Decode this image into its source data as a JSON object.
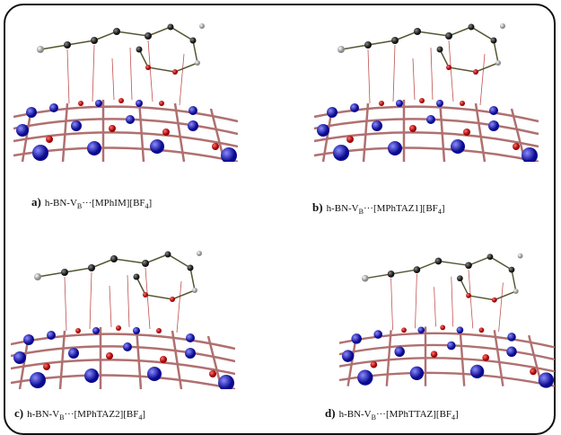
{
  "panels": [
    {
      "label": "a)",
      "caption": [
        {
          "text": "h-BN-V"
        },
        {
          "text": "B",
          "sub": true
        },
        {
          "text": "···[MPhIM][BF"
        },
        {
          "text": "4",
          "sub": true
        },
        {
          "text": "]"
        }
      ]
    },
    {
      "label": "b)",
      "caption": [
        {
          "text": "h-BN-V"
        },
        {
          "text": "B",
          "sub": true
        },
        {
          "text": "···[MPhTAZ1][BF"
        },
        {
          "text": "4",
          "sub": true
        },
        {
          "text": "]"
        }
      ]
    },
    {
      "label": "c)",
      "caption": [
        {
          "text": "h-BN-V"
        },
        {
          "text": "B",
          "sub": true
        },
        {
          "text": "···[MPhTAZ2][BF"
        },
        {
          "text": "4",
          "sub": true
        },
        {
          "text": "]"
        }
      ]
    },
    {
      "label": "d)",
      "caption": [
        {
          "text": "h-BN-V"
        },
        {
          "text": "B",
          "sub": true
        },
        {
          "text": "···[MPhTTAZ][BF"
        },
        {
          "text": "4",
          "sub": true
        },
        {
          "text": "]"
        }
      ]
    }
  ]
}
